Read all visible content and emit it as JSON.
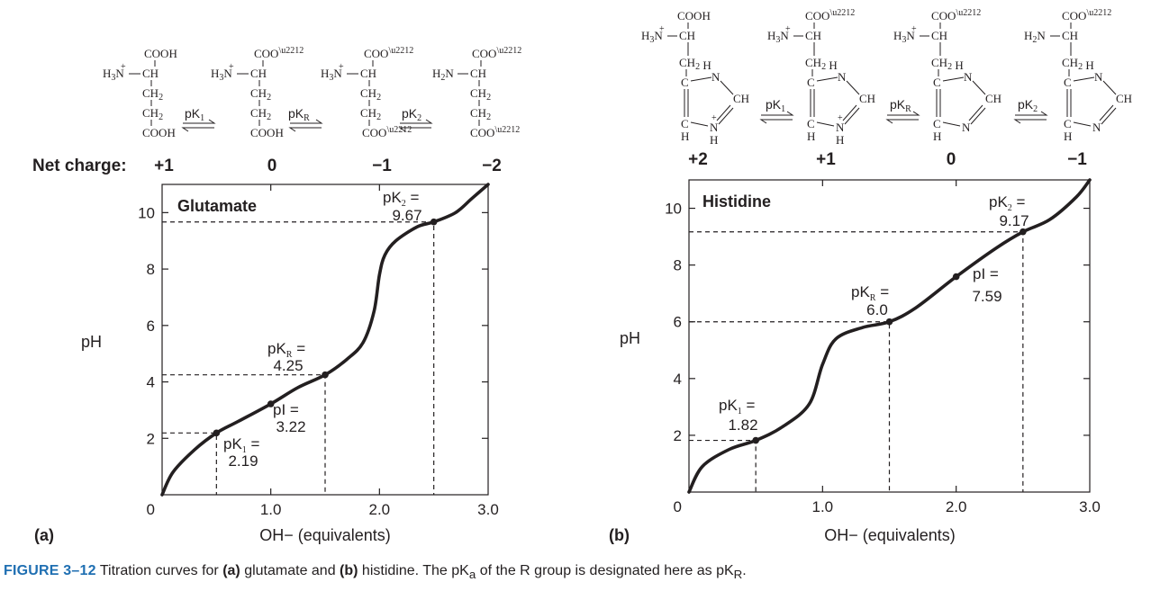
{
  "chart_data": [
    {
      "type": "line",
      "panel_label": "(a)",
      "title": "Glutamate",
      "xlabel": "OH− (equivalents)",
      "ylabel": "pH",
      "xlim": [
        0,
        3.0
      ],
      "ylim": [
        0,
        11
      ],
      "x_ticks": [
        "0",
        "1.0",
        "2.0",
        "3.0"
      ],
      "y_ticks": [
        "0",
        "2",
        "4",
        "6",
        "8",
        "10"
      ],
      "x": [
        0.0,
        0.1,
        0.3,
        0.5,
        0.7,
        1.0,
        1.25,
        1.5,
        1.7,
        1.85,
        1.95,
        2.0,
        2.05,
        2.15,
        2.35,
        2.5,
        2.7,
        2.85,
        3.0
      ],
      "y": [
        0.0,
        0.8,
        1.6,
        2.19,
        2.6,
        3.22,
        3.8,
        4.25,
        4.8,
        5.4,
        6.5,
        7.8,
        8.5,
        9.0,
        9.5,
        9.67,
        10.0,
        10.5,
        11.0
      ],
      "labeled_points": [
        {
          "name": "pK1",
          "label": "pK1 =",
          "value_text": "2.19",
          "x": 0.5,
          "y": 2.19
        },
        {
          "name": "pI",
          "label": "pI =",
          "value_text": "3.22",
          "x": 1.0,
          "y": 3.22
        },
        {
          "name": "pKR",
          "label": "pKR =",
          "value_text": "4.25",
          "x": 1.5,
          "y": 4.25
        },
        {
          "name": "pK2",
          "label": "pK2 =",
          "value_text": "9.67",
          "x": 2.5,
          "y": 9.67
        }
      ],
      "net_charge_label": "Net charge:",
      "species_charges": [
        "+1",
        "0",
        "−1",
        "−2"
      ],
      "equilibria": [
        "pK1",
        "pKR",
        "pK2"
      ]
    },
    {
      "type": "line",
      "panel_label": "(b)",
      "title": "Histidine",
      "xlabel": "OH− (equivalents)",
      "ylabel": "pH",
      "xlim": [
        0,
        3.0
      ],
      "ylim": [
        0,
        11
      ],
      "x_ticks": [
        "0",
        "1.0",
        "2.0",
        "3.0"
      ],
      "y_ticks": [
        "0",
        "2",
        "4",
        "6",
        "8",
        "10"
      ],
      "x": [
        0.0,
        0.1,
        0.3,
        0.5,
        0.7,
        0.9,
        1.0,
        1.1,
        1.3,
        1.5,
        1.7,
        2.0,
        2.3,
        2.5,
        2.7,
        2.9,
        3.0
      ],
      "y": [
        0.0,
        0.9,
        1.5,
        1.82,
        2.3,
        3.1,
        4.5,
        5.4,
        5.8,
        6.0,
        6.5,
        7.59,
        8.6,
        9.17,
        9.6,
        10.4,
        11.0
      ],
      "labeled_points": [
        {
          "name": "pK1",
          "label": "pK1 =",
          "value_text": "1.82",
          "x": 0.5,
          "y": 1.82
        },
        {
          "name": "pKR",
          "label": "pKR =",
          "value_text": "6.0",
          "x": 1.5,
          "y": 6.0
        },
        {
          "name": "pI",
          "label": "pI =",
          "value_text": "7.59",
          "x": 2.0,
          "y": 7.59
        },
        {
          "name": "pK2",
          "label": "pK2 =",
          "value_text": "9.17",
          "x": 2.5,
          "y": 9.17
        }
      ],
      "species_charges": [
        "+2",
        "+1",
        "0",
        "−1"
      ],
      "equilibria": [
        "pK1",
        "pKR",
        "pK2"
      ]
    }
  ],
  "caption": {
    "label": "FIGURE 3–12",
    "text_1": " Titration curves for ",
    "bold_a": "(a)",
    "text_2": " glutamate and ",
    "bold_b": "(b)",
    "text_3": " histidine. The pK",
    "sub_a": "a",
    "text_4": " of the R group is designated here as pK",
    "sub_r": "R",
    "text_5": "."
  }
}
